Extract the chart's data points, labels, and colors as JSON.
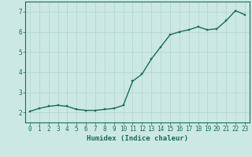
{
  "title": "",
  "xlabel": "Humidex (Indice chaleur)",
  "ylabel": "",
  "x_values": [
    0,
    1,
    2,
    3,
    4,
    5,
    6,
    7,
    8,
    9,
    10,
    11,
    12,
    13,
    14,
    15,
    16,
    17,
    18,
    19,
    20,
    21,
    22,
    23
  ],
  "y_values": [
    2.05,
    2.2,
    2.3,
    2.35,
    2.3,
    2.15,
    2.1,
    2.1,
    2.15,
    2.2,
    2.35,
    3.55,
    3.9,
    4.65,
    5.25,
    5.85,
    6.0,
    6.1,
    6.25,
    6.1,
    6.15,
    6.55,
    7.05,
    6.85
  ],
  "line_color": "#1a6b5a",
  "marker_color": "#1a6b5a",
  "bg_color": "#cce8e4",
  "grid_color": "#b0d4ce",
  "axis_color": "#1a6b5a",
  "tick_label_color": "#1a6b5a",
  "xlabel_color": "#1a6b5a",
  "xlim": [
    -0.5,
    23.5
  ],
  "ylim": [
    1.5,
    7.5
  ],
  "yticks": [
    2,
    3,
    4,
    5,
    6,
    7
  ],
  "xticks": [
    0,
    1,
    2,
    3,
    4,
    5,
    6,
    7,
    8,
    9,
    10,
    11,
    12,
    13,
    14,
    15,
    16,
    17,
    18,
    19,
    20,
    21,
    22,
    23
  ],
  "xlabel_fontsize": 6.5,
  "tick_fontsize": 5.5,
  "linewidth": 1.0,
  "markersize": 2.0
}
